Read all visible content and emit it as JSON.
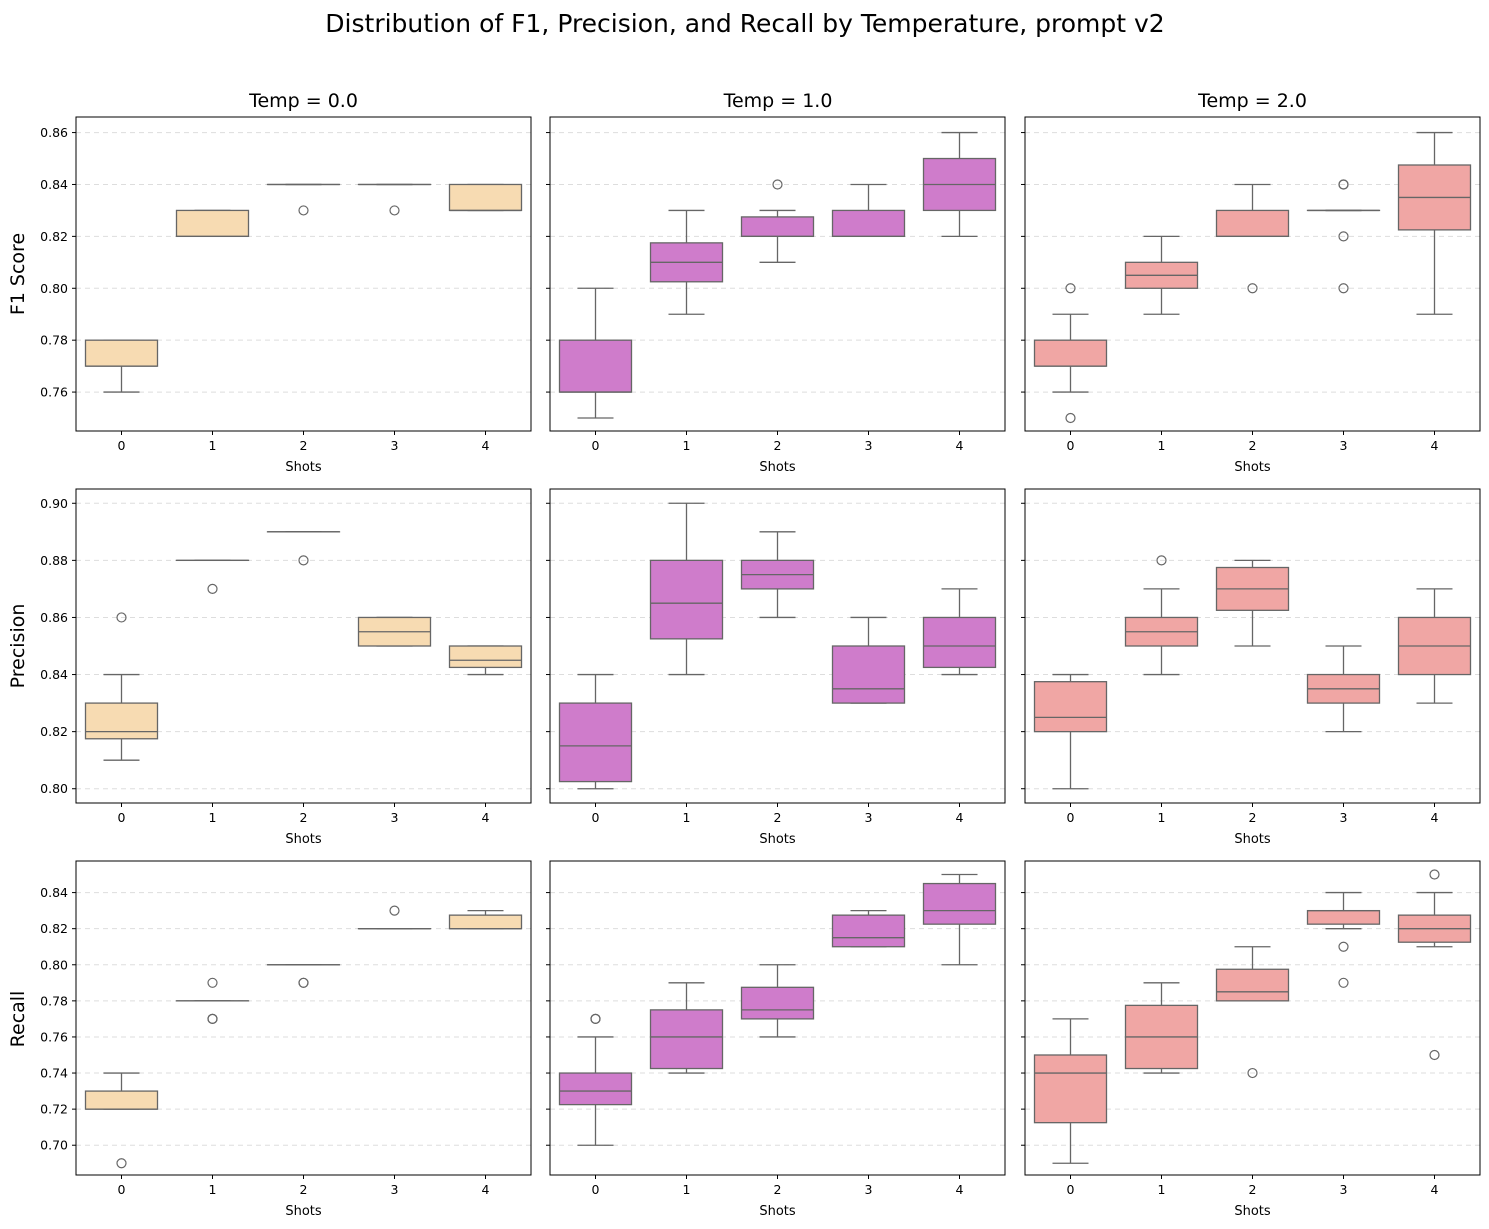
{
  "suptitle": "Distribution of F1, Precision, and Recall by Temperature, prompt v2",
  "column_titles": [
    "Temp = 0.0",
    "Temp = 1.0",
    "Temp = 2.0"
  ],
  "row_labels": [
    "F1 Score",
    "Precision",
    "Recall"
  ],
  "x_axis_label": "Shots",
  "colors": {
    "temp_0.0": "#f7dbb2",
    "temp_1.0": "#cf7ccb",
    "temp_2.0": "#f0a6a4",
    "box_edge": "#666666",
    "grid": "#dddddd"
  },
  "chart_data": {
    "type": "box",
    "categories": [
      "0",
      "1",
      "2",
      "3",
      "4"
    ],
    "rows": [
      {
        "metric": "F1 Score",
        "ylim": [
          0.745,
          0.866
        ],
        "yticks": [
          "0.76",
          "0.78",
          "0.80",
          "0.82",
          "0.84",
          "0.86"
        ],
        "panels": [
          {
            "temp": "Temp = 0.0",
            "boxes": [
              {
                "q1": 0.77,
                "median": 0.77,
                "q3": 0.78,
                "low": 0.76,
                "high": 0.78,
                "outliers": []
              },
              {
                "q1": 0.82,
                "median": 0.82,
                "q3": 0.83,
                "low": 0.82,
                "high": 0.83,
                "outliers": []
              },
              {
                "q1": 0.84,
                "median": 0.84,
                "q3": 0.84,
                "low": 0.84,
                "high": 0.84,
                "outliers": [
                  0.83
                ]
              },
              {
                "q1": 0.84,
                "median": 0.84,
                "q3": 0.84,
                "low": 0.84,
                "high": 0.84,
                "outliers": [
                  0.83
                ]
              },
              {
                "q1": 0.83,
                "median": 0.83,
                "q3": 0.84,
                "low": 0.83,
                "high": 0.84,
                "outliers": []
              }
            ]
          },
          {
            "temp": "Temp = 1.0",
            "boxes": [
              {
                "q1": 0.76,
                "median": 0.76,
                "q3": 0.78,
                "low": 0.75,
                "high": 0.8,
                "outliers": []
              },
              {
                "q1": 0.8025,
                "median": 0.81,
                "q3": 0.8175,
                "low": 0.79,
                "high": 0.83,
                "outliers": []
              },
              {
                "q1": 0.82,
                "median": 0.82,
                "q3": 0.8275,
                "low": 0.81,
                "high": 0.83,
                "outliers": [
                  0.84
                ]
              },
              {
                "q1": 0.82,
                "median": 0.82,
                "q3": 0.83,
                "low": 0.82,
                "high": 0.84,
                "outliers": []
              },
              {
                "q1": 0.83,
                "median": 0.84,
                "q3": 0.85,
                "low": 0.82,
                "high": 0.86,
                "outliers": []
              }
            ]
          },
          {
            "temp": "Temp = 2.0",
            "boxes": [
              {
                "q1": 0.77,
                "median": 0.77,
                "q3": 0.78,
                "low": 0.76,
                "high": 0.79,
                "outliers": [
                  0.8,
                  0.75
                ]
              },
              {
                "q1": 0.8,
                "median": 0.805,
                "q3": 0.81,
                "low": 0.79,
                "high": 0.82,
                "outliers": []
              },
              {
                "q1": 0.82,
                "median": 0.82,
                "q3": 0.83,
                "low": 0.82,
                "high": 0.84,
                "outliers": [
                  0.8
                ]
              },
              {
                "q1": 0.83,
                "median": 0.83,
                "q3": 0.83,
                "low": 0.83,
                "high": 0.83,
                "outliers": [
                  0.84,
                  0.84,
                  0.82,
                  0.8
                ]
              },
              {
                "q1": 0.8225,
                "median": 0.835,
                "q3": 0.8475,
                "low": 0.79,
                "high": 0.86,
                "outliers": []
              }
            ]
          }
        ]
      },
      {
        "metric": "Precision",
        "ylim": [
          0.795,
          0.905
        ],
        "yticks": [
          "0.80",
          "0.82",
          "0.84",
          "0.86",
          "0.88",
          "0.90"
        ],
        "panels": [
          {
            "temp": "Temp = 0.0",
            "boxes": [
              {
                "q1": 0.8175,
                "median": 0.82,
                "q3": 0.83,
                "low": 0.81,
                "high": 0.84,
                "outliers": [
                  0.86
                ]
              },
              {
                "q1": 0.88,
                "median": 0.88,
                "q3": 0.88,
                "low": 0.88,
                "high": 0.88,
                "outliers": [
                  0.87
                ]
              },
              {
                "q1": 0.89,
                "median": 0.89,
                "q3": 0.89,
                "low": 0.89,
                "high": 0.89,
                "outliers": [
                  0.88
                ]
              },
              {
                "q1": 0.85,
                "median": 0.855,
                "q3": 0.86,
                "low": 0.85,
                "high": 0.86,
                "outliers": []
              },
              {
                "q1": 0.8425,
                "median": 0.845,
                "q3": 0.85,
                "low": 0.84,
                "high": 0.85,
                "outliers": []
              }
            ]
          },
          {
            "temp": "Temp = 1.0",
            "boxes": [
              {
                "q1": 0.8025,
                "median": 0.815,
                "q3": 0.83,
                "low": 0.8,
                "high": 0.84,
                "outliers": []
              },
              {
                "q1": 0.8525,
                "median": 0.865,
                "q3": 0.88,
                "low": 0.84,
                "high": 0.9,
                "outliers": []
              },
              {
                "q1": 0.87,
                "median": 0.875,
                "q3": 0.88,
                "low": 0.86,
                "high": 0.89,
                "outliers": []
              },
              {
                "q1": 0.83,
                "median": 0.835,
                "q3": 0.85,
                "low": 0.83,
                "high": 0.86,
                "outliers": []
              },
              {
                "q1": 0.8425,
                "median": 0.85,
                "q3": 0.86,
                "low": 0.84,
                "high": 0.87,
                "outliers": []
              }
            ]
          },
          {
            "temp": "Temp = 2.0",
            "boxes": [
              {
                "q1": 0.82,
                "median": 0.825,
                "q3": 0.8375,
                "low": 0.8,
                "high": 0.84,
                "outliers": []
              },
              {
                "q1": 0.85,
                "median": 0.855,
                "q3": 0.86,
                "low": 0.84,
                "high": 0.87,
                "outliers": [
                  0.88
                ]
              },
              {
                "q1": 0.8625,
                "median": 0.87,
                "q3": 0.8775,
                "low": 0.85,
                "high": 0.88,
                "outliers": []
              },
              {
                "q1": 0.83,
                "median": 0.835,
                "q3": 0.84,
                "low": 0.82,
                "high": 0.85,
                "outliers": []
              },
              {
                "q1": 0.84,
                "median": 0.85,
                "q3": 0.86,
                "low": 0.83,
                "high": 0.87,
                "outliers": []
              }
            ]
          }
        ]
      },
      {
        "metric": "Recall",
        "ylim": [
          0.6835,
          0.8575
        ],
        "yticks": [
          "0.70",
          "0.72",
          "0.74",
          "0.76",
          "0.78",
          "0.80",
          "0.82",
          "0.84"
        ],
        "panels": [
          {
            "temp": "Temp = 0.0",
            "boxes": [
              {
                "q1": 0.72,
                "median": 0.72,
                "q3": 0.73,
                "low": 0.72,
                "high": 0.74,
                "outliers": [
                  0.69
                ]
              },
              {
                "q1": 0.78,
                "median": 0.78,
                "q3": 0.78,
                "low": 0.78,
                "high": 0.78,
                "outliers": [
                  0.79,
                  0.77,
                  0.77
                ]
              },
              {
                "q1": 0.8,
                "median": 0.8,
                "q3": 0.8,
                "low": 0.8,
                "high": 0.8,
                "outliers": [
                  0.79,
                  0.79
                ]
              },
              {
                "q1": 0.82,
                "median": 0.82,
                "q3": 0.82,
                "low": 0.82,
                "high": 0.82,
                "outliers": [
                  0.83
                ]
              },
              {
                "q1": 0.82,
                "median": 0.82,
                "q3": 0.8275,
                "low": 0.82,
                "high": 0.83,
                "outliers": []
              }
            ]
          },
          {
            "temp": "Temp = 1.0",
            "boxes": [
              {
                "q1": 0.7225,
                "median": 0.73,
                "q3": 0.74,
                "low": 0.7,
                "high": 0.76,
                "outliers": [
                  0.77,
                  0.77
                ]
              },
              {
                "q1": 0.7425,
                "median": 0.76,
                "q3": 0.775,
                "low": 0.74,
                "high": 0.79,
                "outliers": []
              },
              {
                "q1": 0.77,
                "median": 0.775,
                "q3": 0.7875,
                "low": 0.76,
                "high": 0.8,
                "outliers": []
              },
              {
                "q1": 0.81,
                "median": 0.815,
                "q3": 0.8275,
                "low": 0.81,
                "high": 0.83,
                "outliers": []
              },
              {
                "q1": 0.8225,
                "median": 0.83,
                "q3": 0.845,
                "low": 0.8,
                "high": 0.85,
                "outliers": []
              }
            ]
          },
          {
            "temp": "Temp = 2.0",
            "boxes": [
              {
                "q1": 0.7125,
                "median": 0.74,
                "q3": 0.75,
                "low": 0.69,
                "high": 0.77,
                "outliers": []
              },
              {
                "q1": 0.7425,
                "median": 0.76,
                "q3": 0.7775,
                "low": 0.74,
                "high": 0.79,
                "outliers": []
              },
              {
                "q1": 0.78,
                "median": 0.785,
                "q3": 0.7975,
                "low": 0.78,
                "high": 0.81,
                "outliers": [
                  0.74
                ]
              },
              {
                "q1": 0.8225,
                "median": 0.83,
                "q3": 0.83,
                "low": 0.82,
                "high": 0.84,
                "outliers": [
                  0.81,
                  0.79
                ]
              },
              {
                "q1": 0.8125,
                "median": 0.82,
                "q3": 0.8275,
                "low": 0.81,
                "high": 0.84,
                "outliers": [
                  0.85,
                  0.75
                ]
              }
            ]
          }
        ]
      }
    ]
  }
}
